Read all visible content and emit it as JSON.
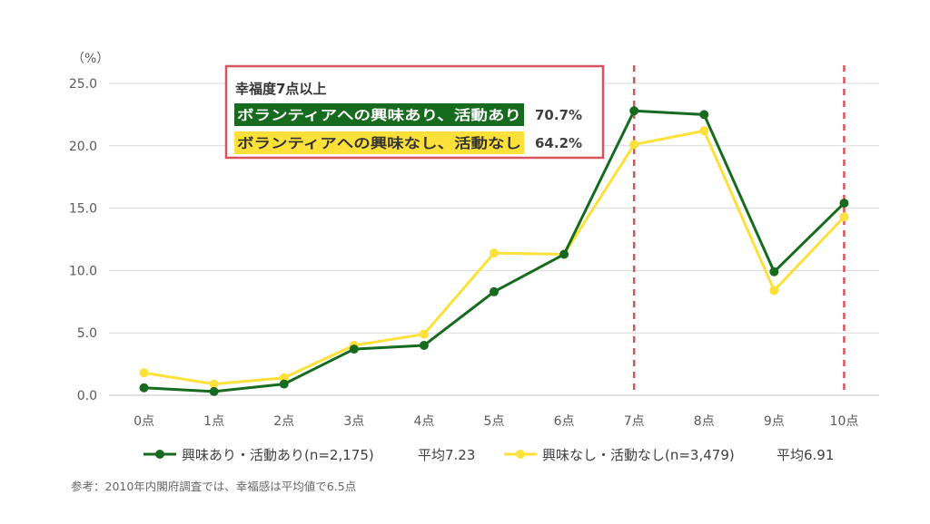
{
  "chart_data": {
    "type": "line",
    "unit": "（%）",
    "categories": [
      "0点",
      "1点",
      "2点",
      "3点",
      "4点",
      "5点",
      "6点",
      "7点",
      "8点",
      "9点",
      "10点"
    ],
    "y_ticks": [
      "0.0",
      "5.0",
      "10.0",
      "15.0",
      "20.0",
      "25.0"
    ],
    "ylim": [
      0,
      25
    ],
    "grid": true,
    "series": [
      {
        "name": "興味あり・活動あり(n=2,175)",
        "average_label": "平均7.23",
        "color": "#176b1f",
        "values": [
          0.6,
          0.3,
          0.9,
          3.7,
          4.0,
          8.3,
          11.3,
          22.8,
          22.5,
          9.9,
          15.4
        ]
      },
      {
        "name": "興味なし・活動なし(n=3,479)",
        "average_label": "平均6.91",
        "color": "#fde03a",
        "values": [
          1.8,
          0.9,
          1.4,
          4.0,
          4.9,
          11.4,
          11.3,
          20.1,
          21.2,
          8.4,
          14.3
        ]
      }
    ],
    "reference_lines": {
      "categories": [
        "7点",
        "10点"
      ],
      "color": "#d9535f"
    },
    "annotation_box": {
      "title": "幸福度7点以上",
      "rows": [
        {
          "label": "ボランティアへの興味あり、活動あり",
          "value": "70.7%",
          "bg": "#176b1f",
          "fg": "#ffffff"
        },
        {
          "label": "ボランティアへの興味なし、活動なし",
          "value": "64.2%",
          "bg": "#fde03a",
          "fg": "#333333"
        }
      ],
      "border_color": "#d9535f"
    },
    "legend_position": "bottom",
    "footnote": "参考：2010年内閣府調査では、幸福感は平均値で6.5点"
  }
}
